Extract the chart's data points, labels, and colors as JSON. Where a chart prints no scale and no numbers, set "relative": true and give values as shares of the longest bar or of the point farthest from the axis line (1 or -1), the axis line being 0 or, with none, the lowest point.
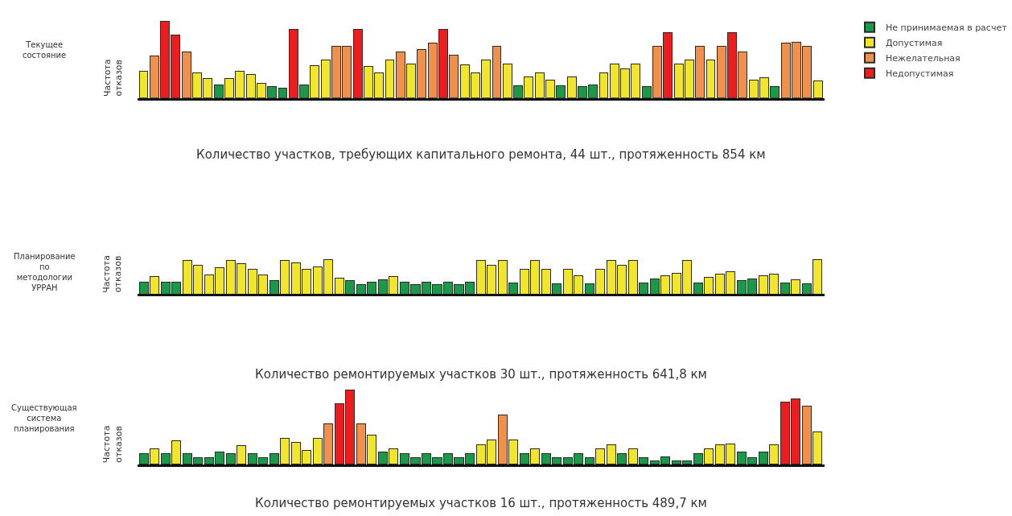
{
  "chart_data": [
    {
      "type": "bar",
      "ylabel": "Частота отказов",
      "relative": true,
      "stacked": true,
      "legend": "right",
      "categories": [
        null,
        null,
        null,
        null,
        null,
        null,
        null,
        null,
        null,
        null,
        null,
        null,
        null,
        null,
        null,
        null,
        null,
        null,
        null,
        null,
        null,
        null,
        null,
        null,
        null,
        null,
        null,
        null,
        null,
        null,
        null,
        null,
        null,
        null,
        null,
        null,
        null,
        null,
        null,
        null,
        null,
        null,
        null,
        null,
        null,
        null,
        null,
        null,
        null,
        null,
        null,
        null,
        null,
        null,
        null,
        null,
        null,
        null,
        null,
        null,
        null,
        null,
        null,
        null
      ],
      "series": [
        {
          "name": "Недопустимая",
          "color": "#ee1c1c",
          "values": [
            null,
            null,
            1,
            0.82,
            null,
            null,
            null,
            null,
            null,
            null,
            null,
            null,
            null,
            null,
            0.89,
            null,
            null,
            null,
            null,
            null,
            0.89,
            null,
            null,
            null,
            null,
            null,
            null,
            null,
            0.89,
            null,
            null,
            null,
            null,
            null,
            null,
            null,
            null,
            null,
            null,
            null,
            null,
            null,
            null,
            null,
            null,
            null,
            null,
            null,
            null,
            0.85,
            null,
            null,
            null,
            null,
            null,
            0.85,
            null,
            null,
            null,
            null,
            null,
            null,
            null,
            null
          ]
        },
        {
          "name": "Нежелательная",
          "color": "#f0904a",
          "values": [
            null,
            0.55,
            null,
            null,
            0.6,
            null,
            null,
            null,
            null,
            null,
            null,
            null,
            null,
            null,
            null,
            null,
            null,
            null,
            0.67,
            0.67,
            null,
            null,
            null,
            null,
            0.6,
            null,
            0.63,
            0.72,
            null,
            0.56,
            null,
            null,
            null,
            0.67,
            null,
            null,
            null,
            null,
            null,
            null,
            null,
            null,
            null,
            null,
            null,
            null,
            null,
            null,
            0.67,
            null,
            null,
            null,
            0.67,
            null,
            0.67,
            null,
            0.6,
            null,
            null,
            null,
            0.71,
            0.73,
            0.67,
            null
          ]
        },
        {
          "name": "Допустимая",
          "color": "#f2e62a",
          "values": [
            0.35,
            null,
            null,
            null,
            null,
            0.33,
            0.25,
            null,
            0.25,
            0.35,
            0.31,
            0.19,
            null,
            null,
            null,
            null,
            0.42,
            0.49,
            null,
            null,
            null,
            0.41,
            0.33,
            0.49,
            null,
            0.44,
            null,
            null,
            null,
            null,
            0.43,
            0.33,
            0.49,
            null,
            0.44,
            null,
            0.27,
            0.33,
            0.23,
            null,
            0.28,
            null,
            null,
            0.33,
            0.44,
            0.38,
            0.44,
            null,
            null,
            null,
            0.44,
            0.49,
            null,
            0.49,
            null,
            null,
            null,
            0.23,
            0.26,
            null,
            null,
            null,
            null,
            0.22
          ]
        },
        {
          "name": "Не принимаемая в расчет",
          "color": "#1a9a48",
          "values": [
            null,
            null,
            null,
            null,
            null,
            null,
            null,
            0.17,
            null,
            null,
            null,
            null,
            0.15,
            0.13,
            null,
            0.17,
            null,
            null,
            null,
            null,
            null,
            null,
            null,
            null,
            null,
            null,
            null,
            null,
            null,
            null,
            null,
            null,
            null,
            null,
            null,
            0.16,
            null,
            null,
            null,
            0.16,
            null,
            0.15,
            0.17,
            null,
            null,
            null,
            null,
            0.15,
            null,
            null,
            null,
            null,
            null,
            null,
            null,
            null,
            null,
            null,
            null,
            0.15,
            null,
            null,
            null,
            null
          ]
        }
      ],
      "annotations": [
        "Текущее состояние",
        "Количество участков, требующих капитального ремонта, 44 шт., протяженность 854 км"
      ]
    },
    {
      "type": "bar",
      "ylabel": "Частота отказов",
      "relative": true,
      "categories": [
        null,
        null,
        null,
        null,
        null,
        null,
        null,
        null,
        null,
        null,
        null,
        null,
        null,
        null,
        null,
        null,
        null,
        null,
        null,
        null,
        null,
        null,
        null,
        null,
        null,
        null,
        null,
        null,
        null,
        null,
        null,
        null,
        null,
        null,
        null,
        null,
        null,
        null,
        null,
        null,
        null,
        null,
        null,
        null,
        null,
        null,
        null,
        null,
        null,
        null,
        null,
        null,
        null,
        null,
        null,
        null,
        null,
        null,
        null,
        null,
        null,
        null,
        null
      ],
      "values": [
        0.35,
        0.5,
        0.35,
        0.35,
        0.98,
        0.83,
        0.56,
        0.77,
        0.98,
        0.88,
        0.71,
        0.56,
        0.39,
        0.98,
        0.89,
        0.71,
        0.78,
        0.99,
        0.45,
        0.39,
        0.27,
        0.35,
        0.41,
        0.5,
        0.35,
        0.27,
        0.35,
        0.27,
        0.35,
        0.27,
        0.35,
        0.98,
        0.82,
        0.96,
        0.33,
        0.71,
        0.96,
        0.71,
        0.29,
        0.71,
        0.54,
        0.29,
        0.71,
        0.96,
        0.82,
        0.96,
        0.33,
        0.43,
        0.54,
        0.61,
        0.96,
        0.33,
        0.48,
        0.58,
        0.64,
        0.39,
        0.43,
        0.54,
        0.58,
        0.33,
        0.42,
        0.29,
        1
      ],
      "colors": [
        "#1a9a48",
        "#f2e62a",
        "#1a9a48",
        "#1a9a48",
        "#f2e62a",
        "#f2e62a",
        "#f2e62a",
        "#f2e62a",
        "#f2e62a",
        "#f2e62a",
        "#f2e62a",
        "#f2e62a",
        "#1a9a48",
        "#f2e62a",
        "#f2e62a",
        "#f2e62a",
        "#f2e62a",
        "#f2e62a",
        "#f2e62a",
        "#1a9a48",
        "#1a9a48",
        "#1a9a48",
        "#1a9a48",
        "#f2e62a",
        "#1a9a48",
        "#1a9a48",
        "#1a9a48",
        "#1a9a48",
        "#1a9a48",
        "#1a9a48",
        "#1a9a48",
        "#f2e62a",
        "#f2e62a",
        "#f2e62a",
        "#1a9a48",
        "#f2e62a",
        "#f2e62a",
        "#f2e62a",
        "#1a9a48",
        "#f2e62a",
        "#f2e62a",
        "#1a9a48",
        "#f2e62a",
        "#f2e62a",
        "#f2e62a",
        "#f2e62a",
        "#1a9a48",
        "#1a9a48",
        "#f2e62a",
        "#f2e62a",
        "#f2e62a",
        "#1a9a48",
        "#f2e62a",
        "#f2e62a",
        "#f2e62a",
        "#1a9a48",
        "#1a9a48",
        "#f2e62a",
        "#f2e62a",
        "#1a9a48",
        "#f2e62a",
        "#1a9a48",
        "#f2e62a"
      ],
      "annotations": [
        "Планирование по методологии УРРАН",
        "Количество ремонтируемых участков 30 шт., протяженность 641,8 км"
      ]
    },
    {
      "type": "bar",
      "ylabel": "Частота отказов",
      "relative": true,
      "categories": [
        null,
        null,
        null,
        null,
        null,
        null,
        null,
        null,
        null,
        null,
        null,
        null,
        null,
        null,
        null,
        null,
        null,
        null,
        null,
        null,
        null,
        null,
        null,
        null,
        null,
        null,
        null,
        null,
        null,
        null,
        null,
        null,
        null,
        null,
        null,
        null,
        null,
        null,
        null,
        null,
        null,
        null,
        null,
        null,
        null,
        null,
        null,
        null,
        null,
        null,
        null,
        null,
        null,
        null,
        null,
        null,
        null,
        null,
        null,
        null,
        null,
        null,
        null
      ],
      "values": [
        0.15,
        0.21,
        0.15,
        0.32,
        0.15,
        0.09,
        0.09,
        0.17,
        0.15,
        0.25,
        0.15,
        0.09,
        0.15,
        0.35,
        0.3,
        0.19,
        0.35,
        0.55,
        0.82,
        1,
        0.55,
        0.39,
        0.17,
        0.21,
        0.15,
        0.09,
        0.15,
        0.09,
        0.15,
        0.09,
        0.15,
        0.26,
        0.33,
        0.66,
        0.33,
        0.15,
        0.21,
        0.15,
        0.09,
        0.09,
        0.15,
        0.09,
        0.21,
        0.26,
        0.15,
        0.21,
        0.09,
        0.05,
        0.1,
        0.05,
        0.05,
        0.15,
        0.21,
        0.26,
        0.28,
        0.17,
        0.09,
        0.17,
        0.26,
        0.84,
        0.88,
        0.78,
        0.44
      ],
      "colors": [
        "#1a9a48",
        "#f2e62a",
        "#1a9a48",
        "#f2e62a",
        "#1a9a48",
        "#1a9a48",
        "#1a9a48",
        "#1a9a48",
        "#1a9a48",
        "#f2e62a",
        "#1a9a48",
        "#1a9a48",
        "#1a9a48",
        "#f2e62a",
        "#f2e62a",
        "#f2e62a",
        "#f2e62a",
        "#f0904a",
        "#ee1c1c",
        "#ee1c1c",
        "#f0904a",
        "#f2e62a",
        "#1a9a48",
        "#f2e62a",
        "#1a9a48",
        "#1a9a48",
        "#1a9a48",
        "#1a9a48",
        "#1a9a48",
        "#1a9a48",
        "#1a9a48",
        "#f2e62a",
        "#f2e62a",
        "#f0904a",
        "#f2e62a",
        "#1a9a48",
        "#f2e62a",
        "#1a9a48",
        "#1a9a48",
        "#1a9a48",
        "#1a9a48",
        "#1a9a48",
        "#f2e62a",
        "#f2e62a",
        "#1a9a48",
        "#f2e62a",
        "#1a9a48",
        "#1a9a48",
        "#1a9a48",
        "#1a9a48",
        "#1a9a48",
        "#1a9a48",
        "#f2e62a",
        "#f2e62a",
        "#f2e62a",
        "#1a9a48",
        "#1a9a48",
        "#1a9a48",
        "#f2e62a",
        "#ee1c1c",
        "#ee1c1c",
        "#f0904a",
        "#f2e62a"
      ],
      "annotations": [
        "Существующая система планирования",
        "Количество ремонтируемых участков 16 шт., протяженность 489,7 км"
      ]
    }
  ]
}
